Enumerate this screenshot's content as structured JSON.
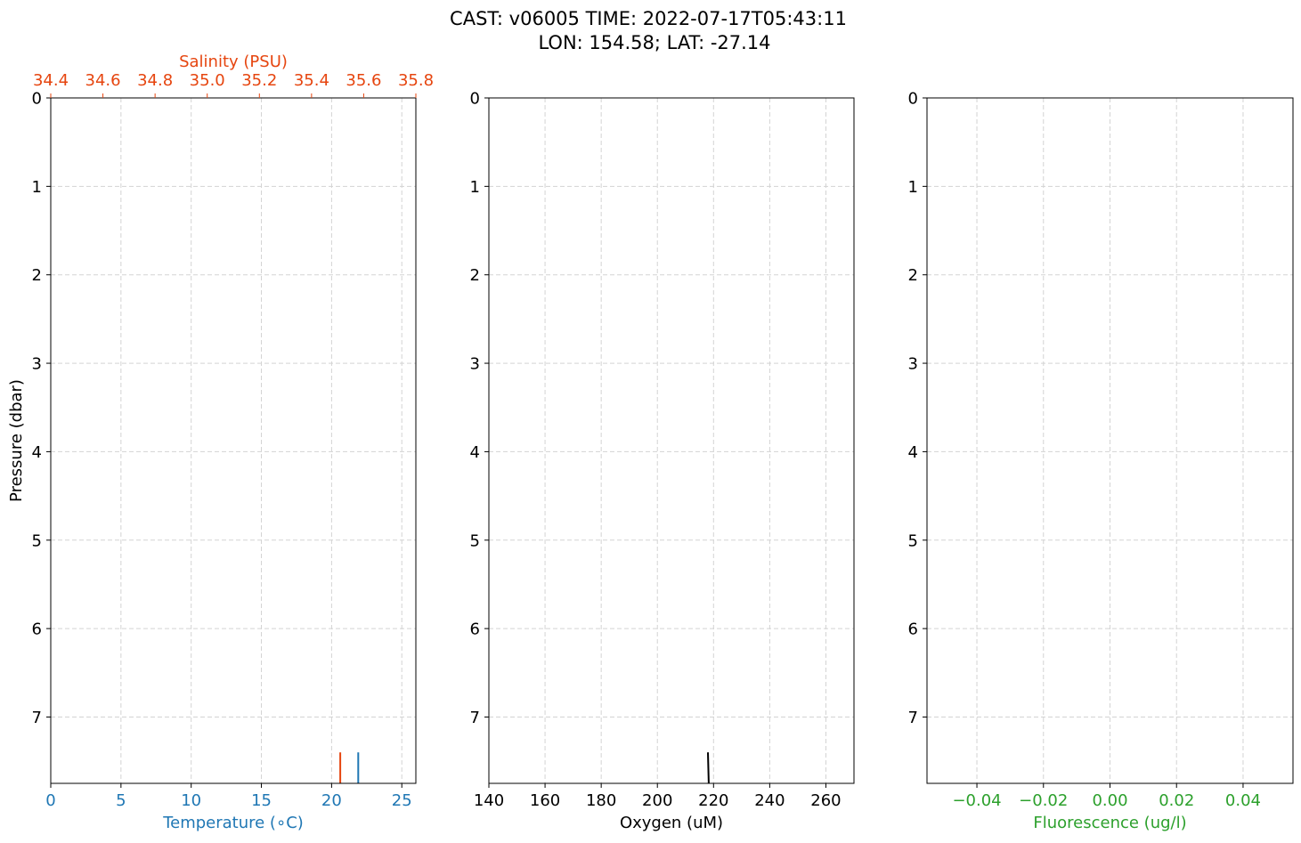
{
  "title": {
    "line1": "CAST: v06005  TIME: 2022-07-17T05:43:11",
    "line2": "LON: 154.58; LAT: -27.14"
  },
  "colors": {
    "temperature": "#1f77b4",
    "salinity": "#e6450f",
    "oxygen": "#000000",
    "fluorescence": "#2ca02c",
    "grid": "#d3d3d3",
    "axis": "#000000"
  },
  "chart_data": [
    {
      "type": "line",
      "panel": "temperature-salinity",
      "ylabel": "Pressure (dbar)",
      "y_ticks": [
        "0",
        "1",
        "2",
        "3",
        "4",
        "5",
        "6",
        "7"
      ],
      "ylim": [
        7.75,
        0
      ],
      "grid": true,
      "x_bottom": {
        "label": "Temperature (∘C)",
        "ticks": [
          "0",
          "5",
          "10",
          "15",
          "20",
          "25"
        ],
        "xlim": [
          0,
          26
        ]
      },
      "x_top": {
        "label": "Salinity (PSU)",
        "ticks": [
          "34.4",
          "34.6",
          "34.8",
          "35.0",
          "35.2",
          "35.4",
          "35.6",
          "35.8"
        ],
        "xlim": [
          34.4,
          35.8
        ]
      },
      "series": [
        {
          "axis": "bottom",
          "color": "#1f77b4",
          "points": [
            [
              21.9,
              7.4
            ],
            [
              21.9,
              7.75
            ]
          ]
        },
        {
          "axis": "top",
          "color": "#e6450f",
          "points": [
            [
              35.51,
              7.4
            ],
            [
              35.51,
              7.75
            ]
          ]
        }
      ]
    },
    {
      "type": "line",
      "panel": "oxygen",
      "y_ticks": [
        "0",
        "1",
        "2",
        "3",
        "4",
        "5",
        "6",
        "7"
      ],
      "ylim": [
        7.75,
        0
      ],
      "grid": true,
      "x_bottom": {
        "label": "Oxygen (uM)",
        "ticks": [
          "140",
          "160",
          "180",
          "200",
          "220",
          "240",
          "260"
        ],
        "xlim": [
          140,
          270
        ]
      },
      "series": [
        {
          "axis": "bottom",
          "color": "#000000",
          "points": [
            [
              218.0,
              7.4
            ],
            [
              218.3,
              7.75
            ]
          ]
        }
      ]
    },
    {
      "type": "line",
      "panel": "fluorescence",
      "y_ticks": [
        "0",
        "1",
        "2",
        "3",
        "4",
        "5",
        "6",
        "7"
      ],
      "ylim": [
        7.75,
        0
      ],
      "grid": true,
      "x_bottom": {
        "label": "Fluorescence (ug/l)",
        "ticks": [
          "−0.04",
          "−0.02",
          "0.00",
          "0.02",
          "0.04"
        ],
        "xlim": [
          -0.055,
          0.055
        ]
      },
      "series": []
    }
  ]
}
